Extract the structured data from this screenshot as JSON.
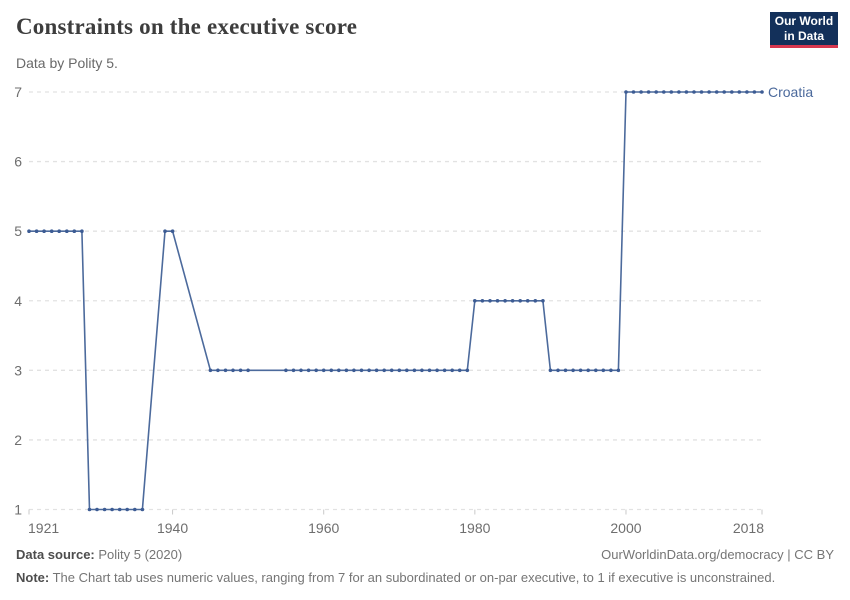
{
  "header": {
    "title": "Constraints on the executive score",
    "subtitle": "Data by Polity 5.",
    "logo": {
      "line1": "Our World",
      "line2": "in Data"
    }
  },
  "chart_data": {
    "type": "line",
    "title": "Constraints on the executive score",
    "subtitle": "Data by Polity 5.",
    "xlabel": "",
    "ylabel": "",
    "xlim": [
      1921,
      2018
    ],
    "ylim": [
      1,
      7
    ],
    "x_ticks": [
      1921,
      1940,
      1960,
      1980,
      2000,
      2018
    ],
    "y_ticks": [
      1,
      2,
      3,
      4,
      5,
      6,
      7
    ],
    "grid": "dashed-horizontal",
    "legend_position": "line-end-label",
    "colors": {
      "line": "#4c6a9c",
      "dots": "#3d5c94",
      "label": "#4c6a9c",
      "grid": "#e2e2e2",
      "axis_text": "#6e6e6e"
    },
    "series": [
      {
        "name": "Croatia",
        "line_vertices": [
          [
            1921,
            5
          ],
          [
            1928,
            5
          ],
          [
            1929,
            1
          ],
          [
            1936,
            1
          ],
          [
            1939,
            5
          ],
          [
            1940,
            5
          ],
          [
            1945,
            3
          ],
          [
            1979,
            3
          ],
          [
            1980,
            4
          ],
          [
            1989,
            4
          ],
          [
            1990,
            3
          ],
          [
            1999,
            3
          ],
          [
            2000,
            7
          ],
          [
            2018,
            7
          ]
        ],
        "points": [
          [
            1921,
            5
          ],
          [
            1922,
            5
          ],
          [
            1923,
            5
          ],
          [
            1924,
            5
          ],
          [
            1925,
            5
          ],
          [
            1926,
            5
          ],
          [
            1927,
            5
          ],
          [
            1928,
            5
          ],
          [
            1929,
            1
          ],
          [
            1930,
            1
          ],
          [
            1931,
            1
          ],
          [
            1932,
            1
          ],
          [
            1933,
            1
          ],
          [
            1934,
            1
          ],
          [
            1935,
            1
          ],
          [
            1936,
            1
          ],
          [
            1939,
            5
          ],
          [
            1940,
            5
          ],
          [
            1945,
            3
          ],
          [
            1946,
            3
          ],
          [
            1947,
            3
          ],
          [
            1948,
            3
          ],
          [
            1949,
            3
          ],
          [
            1950,
            3
          ],
          [
            1955,
            3
          ],
          [
            1956,
            3
          ],
          [
            1957,
            3
          ],
          [
            1958,
            3
          ],
          [
            1959,
            3
          ],
          [
            1960,
            3
          ],
          [
            1961,
            3
          ],
          [
            1962,
            3
          ],
          [
            1963,
            3
          ],
          [
            1964,
            3
          ],
          [
            1965,
            3
          ],
          [
            1966,
            3
          ],
          [
            1967,
            3
          ],
          [
            1968,
            3
          ],
          [
            1969,
            3
          ],
          [
            1970,
            3
          ],
          [
            1971,
            3
          ],
          [
            1972,
            3
          ],
          [
            1973,
            3
          ],
          [
            1974,
            3
          ],
          [
            1975,
            3
          ],
          [
            1976,
            3
          ],
          [
            1977,
            3
          ],
          [
            1978,
            3
          ],
          [
            1979,
            3
          ],
          [
            1980,
            4
          ],
          [
            1981,
            4
          ],
          [
            1982,
            4
          ],
          [
            1983,
            4
          ],
          [
            1984,
            4
          ],
          [
            1985,
            4
          ],
          [
            1986,
            4
          ],
          [
            1987,
            4
          ],
          [
            1988,
            4
          ],
          [
            1989,
            4
          ],
          [
            1990,
            3
          ],
          [
            1991,
            3
          ],
          [
            1992,
            3
          ],
          [
            1993,
            3
          ],
          [
            1994,
            3
          ],
          [
            1995,
            3
          ],
          [
            1996,
            3
          ],
          [
            1997,
            3
          ],
          [
            1998,
            3
          ],
          [
            1999,
            3
          ],
          [
            2000,
            7
          ],
          [
            2001,
            7
          ],
          [
            2002,
            7
          ],
          [
            2003,
            7
          ],
          [
            2004,
            7
          ],
          [
            2005,
            7
          ],
          [
            2006,
            7
          ],
          [
            2007,
            7
          ],
          [
            2008,
            7
          ],
          [
            2009,
            7
          ],
          [
            2010,
            7
          ],
          [
            2011,
            7
          ],
          [
            2012,
            7
          ],
          [
            2013,
            7
          ],
          [
            2014,
            7
          ],
          [
            2015,
            7
          ],
          [
            2016,
            7
          ],
          [
            2017,
            7
          ],
          [
            2018,
            7
          ]
        ]
      }
    ]
  },
  "footer": {
    "source_label": "Data source:",
    "source_value": " Polity 5 (2020)",
    "rights": "OurWorldinData.org/democracy | CC BY",
    "note_label": "Note:",
    "note_value": " The Chart tab uses numeric values, ranging from 7 for an subordinated or on-par executive, to 1 if executive is unconstrained."
  }
}
